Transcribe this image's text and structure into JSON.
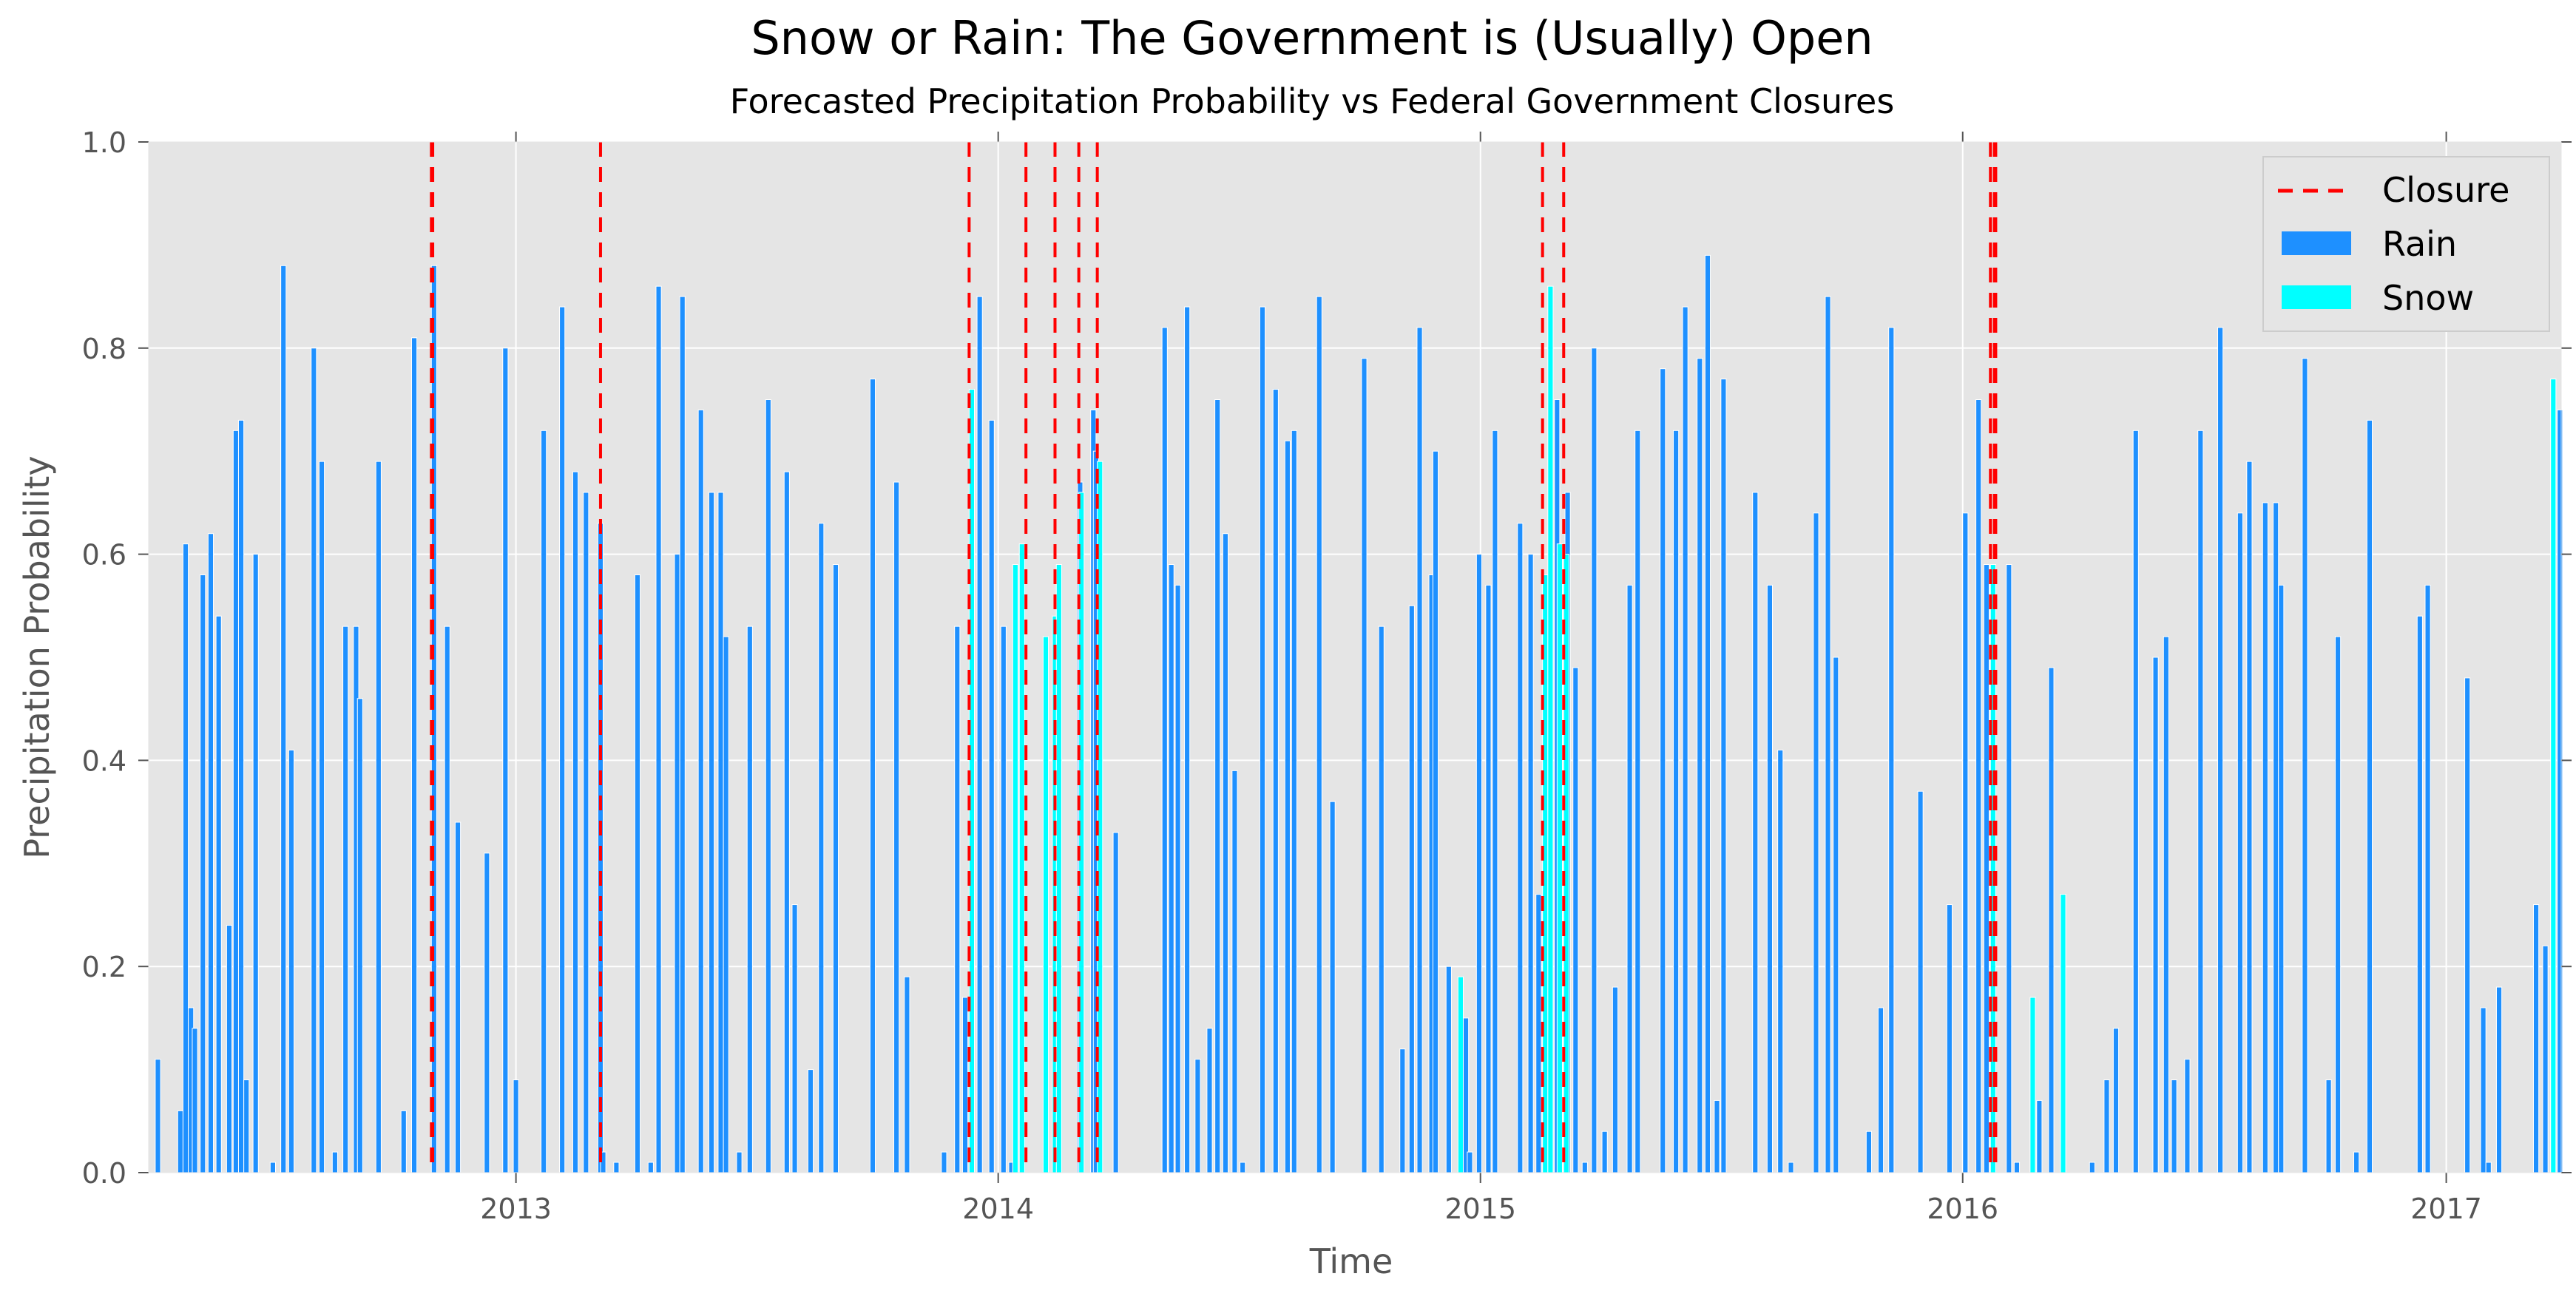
{
  "chart_data": {
    "type": "bar",
    "title": "Snow or Rain: The Government is (Usually) Open",
    "subtitle": "Forecasted Precipitation Probability vs Federal Government Closures",
    "xlabel": "Time",
    "ylabel": "Precipitation Probability",
    "xlim": [
      "2012-03-29",
      "2017-03-29"
    ],
    "ylim": [
      0,
      1.0
    ],
    "x_ticks": [
      "2013",
      "2014",
      "2015",
      "2016",
      "2017"
    ],
    "y_ticks": [
      "0.0",
      "0.2",
      "0.4",
      "0.6",
      "0.8",
      "1.0"
    ],
    "grid": true,
    "legend_position": "top-right",
    "legend": [
      "Closure",
      "Rain",
      "Snow"
    ],
    "colors": {
      "rain": "#1e90ff",
      "snow": "#00ffff",
      "closure": "#ff0000",
      "plot_background": "#e5e5e5",
      "grid": "#ffffff"
    },
    "closures": [
      "2012-10-29",
      "2012-10-30",
      "2013-03-06",
      "2013-12-10",
      "2014-01-22",
      "2014-02-13",
      "2014-03-03",
      "2014-03-17",
      "2015-02-17",
      "2015-03-05",
      "2016-01-22",
      "2016-01-25",
      "2016-01-26"
    ],
    "series": [
      {
        "name": "Rain",
        "points": [
          [
            "2012-04-03",
            0.11
          ],
          [
            "2012-04-20",
            0.06
          ],
          [
            "2012-04-24",
            0.61
          ],
          [
            "2012-04-28",
            0.16
          ],
          [
            "2012-05-01",
            0.14
          ],
          [
            "2012-05-07",
            0.58
          ],
          [
            "2012-05-13",
            0.62
          ],
          [
            "2012-05-19",
            0.54
          ],
          [
            "2012-05-27",
            0.24
          ],
          [
            "2012-06-01",
            0.72
          ],
          [
            "2012-06-05",
            0.73
          ],
          [
            "2012-06-09",
            0.09
          ],
          [
            "2012-06-16",
            0.6
          ],
          [
            "2012-06-29",
            0.01
          ],
          [
            "2012-07-07",
            0.88
          ],
          [
            "2012-07-13",
            0.41
          ],
          [
            "2012-07-30",
            0.8
          ],
          [
            "2012-08-05",
            0.69
          ],
          [
            "2012-08-15",
            0.02
          ],
          [
            "2012-08-23",
            0.53
          ],
          [
            "2012-08-31",
            0.53
          ],
          [
            "2012-09-03",
            0.46
          ],
          [
            "2012-09-17",
            0.69
          ],
          [
            "2012-10-06",
            0.06
          ],
          [
            "2012-10-14",
            0.81
          ],
          [
            "2012-10-29",
            0.88
          ],
          [
            "2012-11-08",
            0.53
          ],
          [
            "2012-11-16",
            0.34
          ],
          [
            "2012-12-08",
            0.31
          ],
          [
            "2012-12-22",
            0.8
          ],
          [
            "2012-12-30",
            0.09
          ],
          [
            "2013-01-20",
            0.72
          ],
          [
            "2013-02-03",
            0.84
          ],
          [
            "2013-02-13",
            0.68
          ],
          [
            "2013-02-21",
            0.66
          ],
          [
            "2013-03-04",
            0.63
          ],
          [
            "2013-03-06",
            0.02
          ],
          [
            "2013-03-16",
            0.01
          ],
          [
            "2013-04-01",
            0.58
          ],
          [
            "2013-04-11",
            0.01
          ],
          [
            "2013-04-17",
            0.86
          ],
          [
            "2013-05-01",
            0.6
          ],
          [
            "2013-05-05",
            0.85
          ],
          [
            "2013-05-19",
            0.74
          ],
          [
            "2013-05-27",
            0.66
          ],
          [
            "2013-06-03",
            0.66
          ],
          [
            "2013-06-07",
            0.52
          ],
          [
            "2013-06-17",
            0.02
          ],
          [
            "2013-06-25",
            0.53
          ],
          [
            "2013-07-09",
            0.75
          ],
          [
            "2013-07-23",
            0.68
          ],
          [
            "2013-07-29",
            0.26
          ],
          [
            "2013-08-10",
            0.1
          ],
          [
            "2013-08-18",
            0.63
          ],
          [
            "2013-08-29",
            0.59
          ],
          [
            "2013-09-26",
            0.77
          ],
          [
            "2013-10-14",
            0.67
          ],
          [
            "2013-10-22",
            0.19
          ],
          [
            "2013-11-19",
            0.02
          ],
          [
            "2013-11-29",
            0.53
          ],
          [
            "2013-12-05",
            0.17
          ],
          [
            "2013-12-16",
            0.85
          ],
          [
            "2013-12-25",
            0.73
          ],
          [
            "2014-01-03",
            0.53
          ],
          [
            "2014-01-09",
            0.01
          ],
          [
            "2014-03-02",
            0.67
          ],
          [
            "2014-03-12",
            0.74
          ],
          [
            "2014-03-14",
            0.7
          ],
          [
            "2014-03-29",
            0.33
          ],
          [
            "2014-05-05",
            0.82
          ],
          [
            "2014-05-10",
            0.59
          ],
          [
            "2014-05-15",
            0.57
          ],
          [
            "2014-05-22",
            0.84
          ],
          [
            "2014-05-30",
            0.11
          ],
          [
            "2014-06-08",
            0.14
          ],
          [
            "2014-06-14",
            0.75
          ],
          [
            "2014-06-20",
            0.62
          ],
          [
            "2014-06-27",
            0.39
          ],
          [
            "2014-07-03",
            0.01
          ],
          [
            "2014-07-18",
            0.84
          ],
          [
            "2014-07-28",
            0.76
          ],
          [
            "2014-08-06",
            0.71
          ],
          [
            "2014-08-11",
            0.72
          ],
          [
            "2014-08-30",
            0.85
          ],
          [
            "2014-09-09",
            0.36
          ],
          [
            "2014-10-03",
            0.79
          ],
          [
            "2014-10-16",
            0.53
          ],
          [
            "2014-11-01",
            0.12
          ],
          [
            "2014-11-08",
            0.55
          ],
          [
            "2014-11-14",
            0.82
          ],
          [
            "2014-11-23",
            0.58
          ],
          [
            "2014-11-26",
            0.7
          ],
          [
            "2014-12-06",
            0.2
          ],
          [
            "2014-12-19",
            0.15
          ],
          [
            "2014-12-22",
            0.02
          ],
          [
            "2014-12-29",
            0.6
          ],
          [
            "2015-01-05",
            0.57
          ],
          [
            "2015-01-10",
            0.72
          ],
          [
            "2015-01-29",
            0.63
          ],
          [
            "2015-02-06",
            0.6
          ],
          [
            "2015-02-12",
            0.27
          ],
          [
            "2015-02-26",
            0.75
          ],
          [
            "2015-03-06",
            0.66
          ],
          [
            "2015-03-12",
            0.49
          ],
          [
            "2015-03-19",
            0.01
          ],
          [
            "2015-03-26",
            0.8
          ],
          [
            "2015-04-03",
            0.04
          ],
          [
            "2015-04-11",
            0.18
          ],
          [
            "2015-04-22",
            0.57
          ],
          [
            "2015-04-28",
            0.72
          ],
          [
            "2015-05-17",
            0.78
          ],
          [
            "2015-05-27",
            0.72
          ],
          [
            "2015-06-03",
            0.84
          ],
          [
            "2015-06-14",
            0.79
          ],
          [
            "2015-06-20",
            0.89
          ],
          [
            "2015-06-27",
            0.07
          ],
          [
            "2015-07-02",
            0.77
          ],
          [
            "2015-07-26",
            0.66
          ],
          [
            "2015-08-06",
            0.57
          ],
          [
            "2015-08-14",
            0.41
          ],
          [
            "2015-08-22",
            0.01
          ],
          [
            "2015-09-10",
            0.64
          ],
          [
            "2015-09-19",
            0.85
          ],
          [
            "2015-09-25",
            0.5
          ],
          [
            "2015-10-20",
            0.04
          ],
          [
            "2015-10-29",
            0.16
          ],
          [
            "2015-11-06",
            0.82
          ],
          [
            "2015-11-28",
            0.37
          ],
          [
            "2015-12-20",
            0.26
          ],
          [
            "2016-01-01",
            0.64
          ],
          [
            "2016-01-11",
            0.75
          ],
          [
            "2016-01-17",
            0.59
          ],
          [
            "2016-02-03",
            0.59
          ],
          [
            "2016-02-09",
            0.01
          ],
          [
            "2016-02-26",
            0.07
          ],
          [
            "2016-03-06",
            0.49
          ],
          [
            "2016-04-06",
            0.01
          ],
          [
            "2016-04-17",
            0.09
          ],
          [
            "2016-04-24",
            0.14
          ],
          [
            "2016-05-09",
            0.72
          ],
          [
            "2016-05-24",
            0.5
          ],
          [
            "2016-06-01",
            0.52
          ],
          [
            "2016-06-07",
            0.09
          ],
          [
            "2016-06-17",
            0.11
          ],
          [
            "2016-06-27",
            0.72
          ],
          [
            "2016-07-12",
            0.82
          ],
          [
            "2016-07-27",
            0.64
          ],
          [
            "2016-08-03",
            0.69
          ],
          [
            "2016-08-15",
            0.65
          ],
          [
            "2016-08-23",
            0.65
          ],
          [
            "2016-08-27",
            0.57
          ],
          [
            "2016-09-14",
            0.79
          ],
          [
            "2016-10-02",
            0.09
          ],
          [
            "2016-10-09",
            0.52
          ],
          [
            "2016-10-23",
            0.02
          ],
          [
            "2016-11-02",
            0.73
          ],
          [
            "2016-12-10",
            0.54
          ],
          [
            "2016-12-16",
            0.57
          ],
          [
            "2017-01-15",
            0.48
          ],
          [
            "2017-01-27",
            0.16
          ],
          [
            "2017-01-31",
            0.01
          ],
          [
            "2017-02-08",
            0.18
          ],
          [
            "2017-03-08",
            0.26
          ],
          [
            "2017-03-15",
            0.22
          ],
          [
            "2017-03-26",
            0.74
          ]
        ]
      },
      {
        "name": "Snow",
        "points": [
          [
            "2013-12-10",
            0.76
          ],
          [
            "2014-01-12",
            0.59
          ],
          [
            "2014-01-17",
            0.61
          ],
          [
            "2014-02-04",
            0.52
          ],
          [
            "2014-02-11",
            0.54
          ],
          [
            "2014-02-14",
            0.59
          ],
          [
            "2014-03-03",
            0.66
          ],
          [
            "2014-03-17",
            0.69
          ],
          [
            "2014-12-15",
            0.19
          ],
          [
            "2015-02-17",
            0.58
          ],
          [
            "2015-02-21",
            0.86
          ],
          [
            "2015-02-28",
            0.61
          ],
          [
            "2015-03-05",
            0.6
          ],
          [
            "2016-01-22",
            0.59
          ],
          [
            "2016-02-21",
            0.17
          ],
          [
            "2016-03-15",
            0.27
          ],
          [
            "2017-03-21",
            0.77
          ]
        ]
      }
    ]
  }
}
